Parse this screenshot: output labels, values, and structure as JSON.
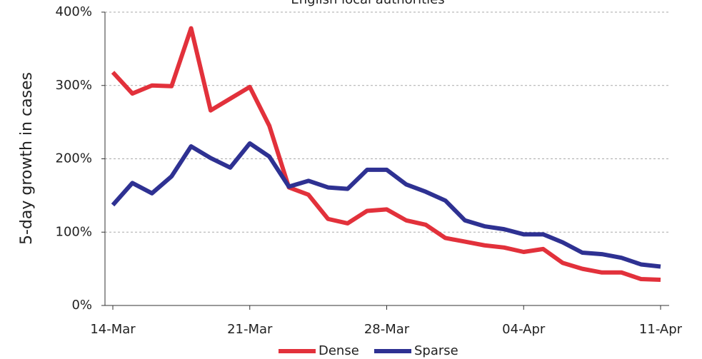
{
  "chart_data": {
    "type": "line",
    "title": "English local authorities",
    "y_label": "5-day growth in cases",
    "categories": [
      "14-Mar",
      null,
      null,
      null,
      null,
      null,
      null,
      "21-Mar",
      null,
      null,
      null,
      null,
      null,
      null,
      "28-Mar",
      null,
      null,
      null,
      null,
      null,
      null,
      "04-Apr",
      null,
      null,
      null,
      null,
      null,
      null,
      "11-Apr"
    ],
    "series": [
      {
        "name": "Dense",
        "color": "#e2313b",
        "values": [
          318,
          289,
          300,
          299,
          378,
          266,
          282,
          298,
          245,
          161,
          151,
          118,
          112,
          129,
          131,
          116,
          110,
          92,
          87,
          82,
          79,
          73,
          77,
          58,
          50,
          45,
          45,
          36,
          35
        ]
      },
      {
        "name": "Sparse",
        "color": "#2e3192",
        "values": [
          137,
          167,
          153,
          176,
          217,
          201,
          188,
          221,
          203,
          162,
          170,
          161,
          159,
          185,
          185,
          165,
          155,
          143,
          116,
          108,
          104,
          97,
          97,
          86,
          72,
          70,
          65,
          56,
          53
        ]
      }
    ],
    "ylim": [
      0,
      400
    ],
    "yticks": [
      {
        "value": 0,
        "label": "0%"
      },
      {
        "value": 100,
        "label": "100%"
      },
      {
        "value": 200,
        "label": "200%"
      },
      {
        "value": 300,
        "label": "300%"
      },
      {
        "value": 400,
        "label": "400%"
      }
    ],
    "grid": true,
    "legend": "bottom"
  }
}
